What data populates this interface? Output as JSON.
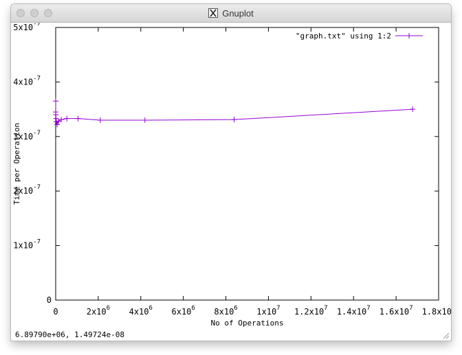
{
  "window": {
    "title": "Gnuplot",
    "title_icon": "x11-icon"
  },
  "statusbar": {
    "coords": "6.89790e+06,  1.49724e-08"
  },
  "chart_data": {
    "type": "line",
    "title": "",
    "xlabel": "No of Operations",
    "ylabel": "Time per Operation",
    "xlim": [
      0,
      18000000
    ],
    "ylim": [
      0,
      5e-07
    ],
    "grid": false,
    "legend_position": "top-right",
    "x_ticks": [
      {
        "value": 0,
        "base": "0",
        "exp": ""
      },
      {
        "value": 2000000,
        "base": "2x10",
        "exp": "6"
      },
      {
        "value": 4000000,
        "base": "4x10",
        "exp": "6"
      },
      {
        "value": 6000000,
        "base": "6x10",
        "exp": "6"
      },
      {
        "value": 8000000,
        "base": "8x10",
        "exp": "6"
      },
      {
        "value": 10000000,
        "base": "1x10",
        "exp": "7"
      },
      {
        "value": 12000000,
        "base": "1.2x10",
        "exp": "7"
      },
      {
        "value": 14000000,
        "base": "1.4x10",
        "exp": "7"
      },
      {
        "value": 16000000,
        "base": "1.6x10",
        "exp": "7"
      },
      {
        "value": 18000000,
        "base": "1.8x10",
        "exp": "7"
      }
    ],
    "y_ticks": [
      {
        "value": 0,
        "base": "0",
        "exp": ""
      },
      {
        "value": 1e-07,
        "base": "1x10",
        "exp": "-7"
      },
      {
        "value": 2e-07,
        "base": "2x10",
        "exp": "-7"
      },
      {
        "value": 3e-07,
        "base": "3x10",
        "exp": "-7"
      },
      {
        "value": 4e-07,
        "base": "4x10",
        "exp": "-7"
      },
      {
        "value": 5e-07,
        "base": "5x10",
        "exp": "-7"
      }
    ],
    "series": [
      {
        "name": "\"graph.txt\"  using 1:2",
        "color": "#9400d3",
        "marker": "plus",
        "x": [
          16,
          1024,
          4096,
          16384,
          32768,
          65536,
          131072,
          262144,
          524288,
          1048576,
          2097152,
          4194304,
          8388608,
          16777216
        ],
        "y": [
          3.45e-07,
          3.65e-07,
          3.4e-07,
          3.33e-07,
          3.27e-07,
          3.22e-07,
          3.28e-07,
          3.31e-07,
          3.33e-07,
          3.33e-07,
          3.3e-07,
          3.3e-07,
          3.31e-07,
          3.5e-07
        ]
      }
    ]
  }
}
